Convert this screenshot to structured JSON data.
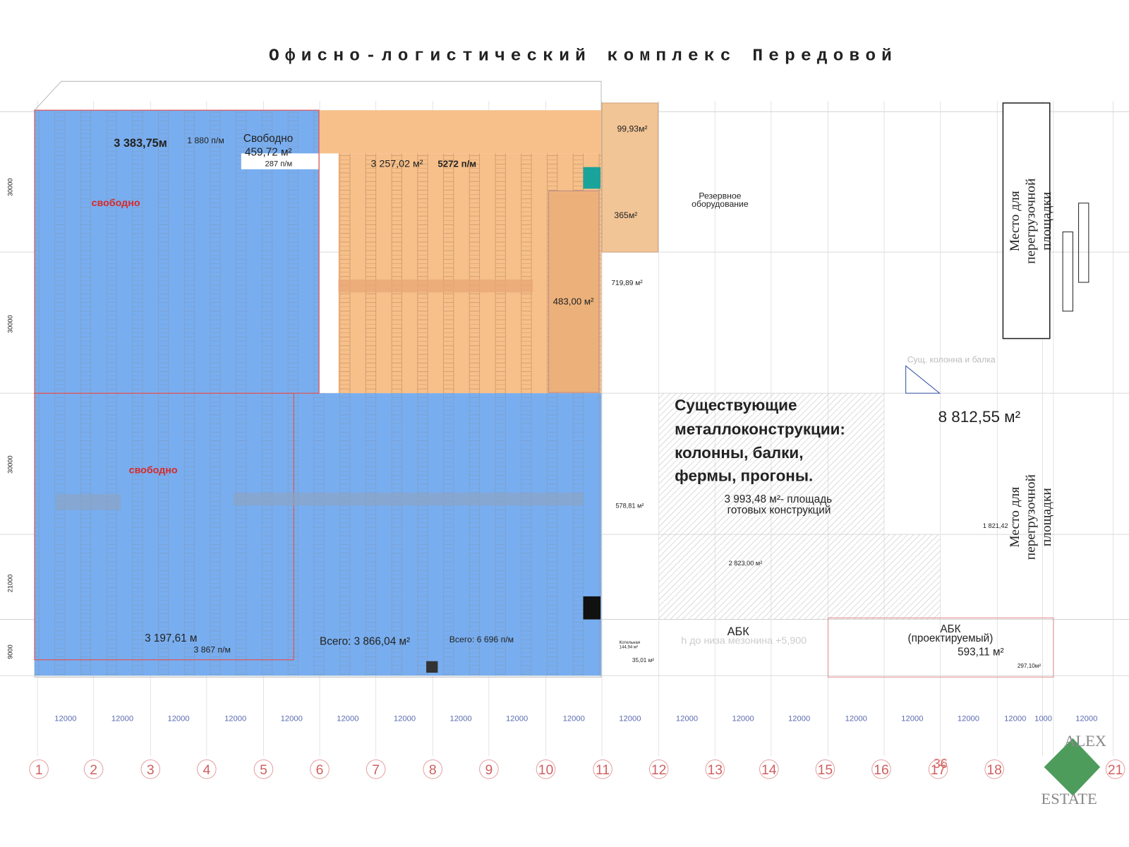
{
  "title": "Офисно-логистический комплекс Передовой",
  "zones": {
    "block_a": {
      "area": "3 383,75м",
      "pallets": "1 880 п/м",
      "status": "свободно"
    },
    "free_small": {
      "label": "Свободно",
      "area": "459,72 м²",
      "pallets": "287 п/м"
    },
    "orange": {
      "area": "3 257,02 м²",
      "pallets": "5272 п/м"
    },
    "mezzanine": "483,00 м²",
    "room_small": "99,93м²",
    "room_mid": "365м²",
    "reserve": [
      "Резервное",
      "оборудование"
    ],
    "area_719": "719,89 м²",
    "block_c": {
      "status": "свободно",
      "area": "3 197,61 м",
      "pallets": "3 867 п/м"
    },
    "block_d": {
      "total": "Всего: 3 866,04 м²",
      "pallets": "Всего: 6 696 п/м"
    },
    "area_578": "578,81 м²",
    "existing": {
      "heading": [
        "Существующие",
        "металлоконструкции:",
        "колонны, балки,",
        "фермы, прогоны."
      ],
      "area": "3 993,48 м²- площадь",
      "note": "готовых конструкций"
    },
    "big_area": "8 812,55 м²",
    "area_2823": "2 823,00 м²",
    "area_1821": "1 821,42",
    "abk": "АБК",
    "abk_project": {
      "name": "АБК",
      "note": "(проектируемый)",
      "area": "593,11 м²"
    },
    "boiler": [
      "Котельная",
      "144,94 м²"
    ],
    "area_35": "35,01 м²",
    "area_297": "297,10м²",
    "unload": [
      "Место для",
      "перегрузочной",
      "площадки"
    ],
    "column_note": "Сущ. колонна и балка",
    "mezzanine_note": "h до низа мезонина +5,900"
  },
  "axis": {
    "dimensions": [
      12000,
      12000,
      12000,
      12000,
      12000,
      12000,
      12000,
      12000,
      12000,
      12000,
      12000,
      12000,
      12000,
      12000,
      12000,
      12000,
      12000,
      12000,
      1000,
      12000
    ],
    "numbers": [
      "1",
      "2",
      "3",
      "4",
      "5",
      "6",
      "7",
      "8",
      "9",
      "10",
      "11",
      "12",
      "13",
      "14",
      "15",
      "16",
      "17",
      "18",
      "21"
    ],
    "marker": "36"
  },
  "side_dimensions": [
    30000,
    30000,
    30000,
    21000,
    9000
  ],
  "logo": [
    "ALEX",
    "ESTATE"
  ]
}
